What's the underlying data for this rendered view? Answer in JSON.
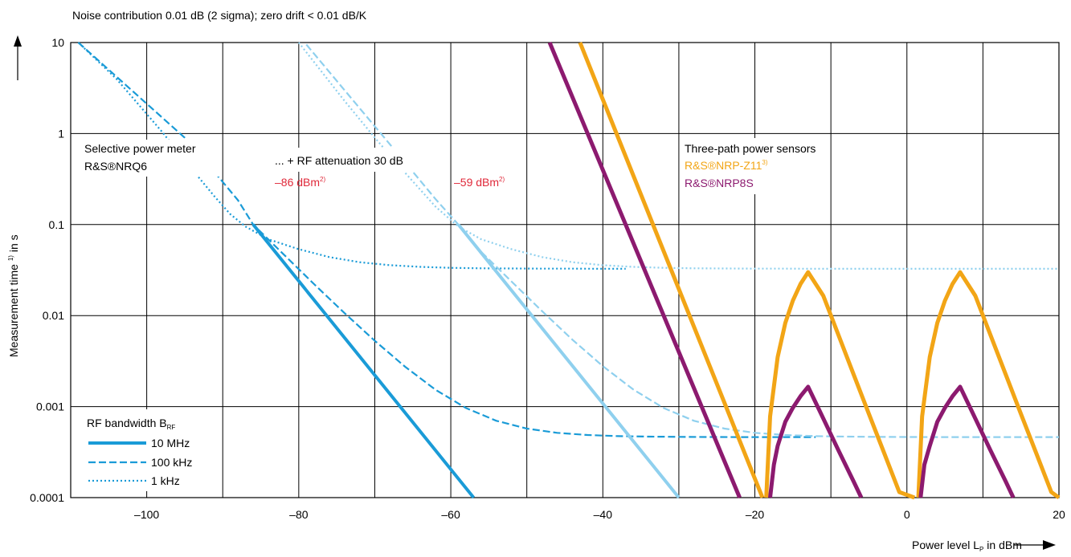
{
  "chart_data": {
    "type": "line",
    "title": "Noise contribution 0.01 dB (2 sigma); zero drift < 0.01 dB/K",
    "xlabel": "Power level L",
    "xlabel_sub": "P",
    "xlabel_unit": " in dBm",
    "ylabel": "Measurement time ",
    "ylabel_sup": "1)",
    "ylabel_unit": " in s",
    "xlim": [
      -110,
      20
    ],
    "ylim": [
      0.0001,
      10
    ],
    "yscale": "log",
    "grid": true,
    "x_ticks": [
      "–100",
      "–80",
      "–60",
      "–40",
      "–20",
      "0",
      "20"
    ],
    "x_tick_values": [
      -100,
      -80,
      -60,
      -40,
      -20,
      0,
      20
    ],
    "y_ticks": [
      "0.0001",
      "0.001",
      "0.01",
      "0.1",
      "1",
      "10"
    ],
    "y_tick_values": [
      0.0001,
      0.001,
      0.01,
      0.1,
      1,
      10
    ],
    "colors": {
      "nrq6": "#1a9bd7",
      "nrq6_atten": "#8fd0ee",
      "nrp_z11": "#f2a516",
      "nrp8s": "#8c1a6f",
      "level_marker": "#e0293a",
      "grid": "#000000"
    },
    "annotations": {
      "nrq6_title": "Selective power meter",
      "nrq6_model": "R&S®NRQ6",
      "atten_title": "... + RF attenuation 30 dB",
      "level1": "–86 dBm",
      "level1_sup": "2)",
      "level2": "–59 dBm",
      "level2_sup": "2)",
      "three_path_title": "Three-path power sensors",
      "nrp_z11": "R&S®NRP-Z11",
      "nrp_z11_sup": "3)",
      "nrp8s": "R&S®NRP8S"
    },
    "legend": {
      "title": "RF bandwidth B",
      "title_sub": "RF",
      "placement": "bottom-left",
      "items": [
        "10 MHz",
        "100 kHz",
        "1 kHz"
      ]
    },
    "series": [
      {
        "group": "nrq6",
        "style": "solid",
        "x": [
          -86,
          -57
        ],
        "y": [
          0.1,
          0.0001
        ]
      },
      {
        "group": "nrq6",
        "style": "dashed",
        "x": [
          -109,
          -95,
          -91,
          -88,
          -86,
          -82,
          -78,
          -74,
          -70,
          -66,
          -62,
          -58,
          -54,
          -50,
          -46,
          -42,
          -38,
          -34,
          -30,
          -26,
          -22,
          -18,
          -14,
          -12
        ],
        "y": [
          10,
          0.9,
          0.37,
          0.185,
          0.1,
          0.0472,
          0.0222,
          0.0107,
          0.00529,
          0.00274,
          0.00153,
          0.000964,
          0.000698,
          0.000573,
          0.000515,
          0.000487,
          0.000474,
          0.000468,
          0.000465,
          0.000463,
          0.000462,
          0.000462,
          0.000462,
          0.000462
        ]
      },
      {
        "group": "nrq6",
        "style": "dotted",
        "x": [
          -109,
          -104,
          -98,
          -94,
          -91,
          -89,
          -87,
          -84,
          -80,
          -76,
          -72,
          -68,
          -64,
          -60,
          -56,
          -52,
          -48,
          -44,
          -40,
          -37
        ],
        "y": [
          10,
          4.0,
          1.05,
          0.4,
          0.2,
          0.13,
          0.095,
          0.069,
          0.0536,
          0.0439,
          0.0386,
          0.0358,
          0.0343,
          0.0335,
          0.0331,
          0.0329,
          0.0328,
          0.0328,
          0.0327,
          0.0327
        ]
      },
      {
        "group": "nrq6_atten",
        "style": "solid",
        "x": [
          -59,
          -30
        ],
        "y": [
          0.1,
          0.0001
        ]
      },
      {
        "group": "nrq6_atten",
        "style": "dashed",
        "x": [
          -79,
          -70,
          -66,
          -62,
          -59,
          -56,
          -52,
          -48,
          -44,
          -40,
          -36,
          -32,
          -28,
          -24,
          -20,
          -16,
          -12,
          -8,
          -4,
          0,
          4,
          8,
          12,
          16,
          20
        ],
        "y": [
          9.5,
          1.2,
          0.48,
          0.19,
          0.1,
          0.05,
          0.0236,
          0.0112,
          0.00543,
          0.00278,
          0.00154,
          0.000965,
          0.000698,
          0.000573,
          0.000515,
          0.000487,
          0.000474,
          0.000468,
          0.000465,
          0.000463,
          0.000462,
          0.000462,
          0.000462,
          0.000462,
          0.000462
        ]
      },
      {
        "group": "nrq6_atten",
        "style": "dotted",
        "x": [
          -80,
          -74,
          -70,
          -66,
          -62,
          -59,
          -56,
          -52,
          -48,
          -44,
          -40,
          -36,
          -32,
          -28,
          -24,
          -20,
          -16,
          -12,
          -8,
          -4,
          0,
          4,
          8,
          12,
          16,
          20
        ],
        "y": [
          10,
          2.3,
          0.9,
          0.37,
          0.157,
          0.095,
          0.069,
          0.0536,
          0.0439,
          0.0386,
          0.0358,
          0.0343,
          0.0335,
          0.0331,
          0.0329,
          0.0328,
          0.0328,
          0.0327,
          0.0327,
          0.0327,
          0.0327,
          0.0327,
          0.0327,
          0.0327,
          0.0327,
          0.0327
        ]
      },
      {
        "group": "nrp_z11",
        "style": "solid",
        "x": [
          -43,
          -19
        ],
        "y": [
          10,
          0.0001
        ]
      },
      {
        "group": "nrp_z11",
        "style": "solid",
        "x": [
          -18.5,
          -18,
          -17,
          -16,
          -15,
          -14,
          -13,
          -13,
          -11,
          -9,
          -7,
          -5,
          -3,
          -1,
          1
        ],
        "y": [
          0.0001,
          0.00078,
          0.0035,
          0.0083,
          0.0146,
          0.0222,
          0.03,
          0.03,
          0.0165,
          0.0061,
          0.00225,
          0.00083,
          0.00031,
          0.000115,
          0.0001
        ]
      },
      {
        "group": "nrp_z11",
        "style": "solid",
        "x": [
          1.5,
          2,
          3,
          4,
          5,
          6,
          7,
          7,
          9,
          11,
          13,
          15,
          17,
          19,
          20
        ],
        "y": [
          0.0001,
          0.00078,
          0.0035,
          0.0083,
          0.0146,
          0.0222,
          0.03,
          0.03,
          0.0165,
          0.0061,
          0.00225,
          0.00083,
          0.00031,
          0.000115,
          0.0001
        ]
      },
      {
        "group": "nrp8s",
        "style": "solid",
        "x": [
          -47,
          -22
        ],
        "y": [
          10,
          0.0001
        ]
      },
      {
        "group": "nrp8s",
        "style": "solid",
        "x": [
          -18,
          -17.5,
          -17,
          -16,
          -15,
          -14,
          -13,
          -13,
          -11,
          -9,
          -7,
          -6
        ],
        "y": [
          0.0001,
          0.00023,
          0.00037,
          0.00068,
          0.00097,
          0.0013,
          0.00165,
          0.00165,
          0.00074,
          0.00033,
          0.00015,
          0.0001
        ]
      },
      {
        "group": "nrp8s",
        "style": "solid",
        "x": [
          1.8,
          2.3,
          3,
          4,
          5,
          6,
          7,
          7,
          9,
          11,
          13,
          14
        ],
        "y": [
          0.0001,
          0.00023,
          0.00037,
          0.00068,
          0.00097,
          0.0013,
          0.00165,
          0.00165,
          0.00074,
          0.00033,
          0.00015,
          0.0001
        ]
      }
    ]
  }
}
